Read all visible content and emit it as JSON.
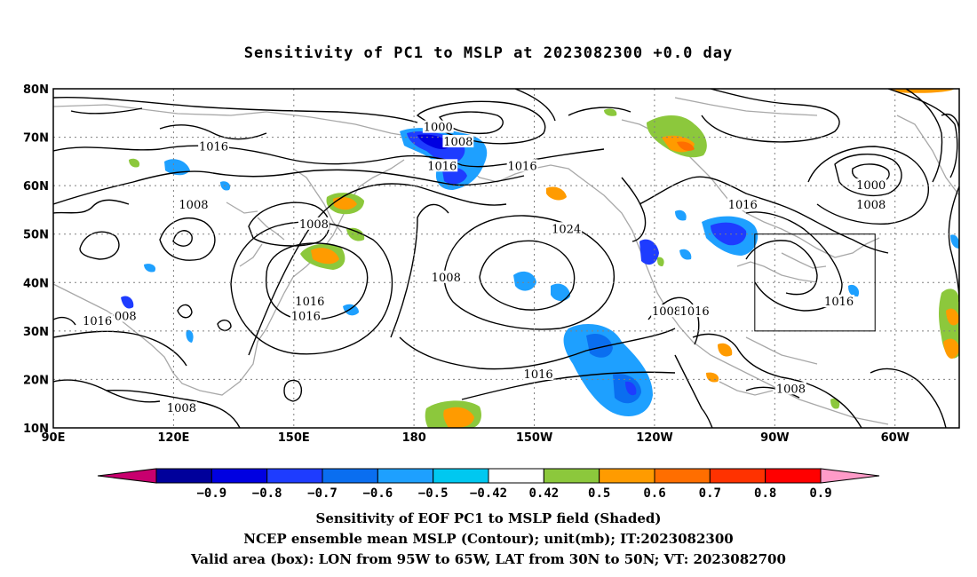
{
  "title": "Sensitivity of PC1 to MSLP at 2023082300 +0.0 day",
  "map": {
    "lat_labels": [
      "80N",
      "70N",
      "60N",
      "50N",
      "40N",
      "30N",
      "20N",
      "10N"
    ],
    "lon_labels": [
      "90E",
      "120E",
      "150E",
      "180",
      "150W",
      "120W",
      "90W",
      "60W"
    ],
    "validation_box": {
      "lon": [
        -95,
        -65
      ],
      "lat": [
        30,
        50
      ]
    },
    "contour_labels": [
      {
        "text": "1000",
        "lon": -174,
        "lat": 72
      },
      {
        "text": "1008",
        "lon": -169,
        "lat": 69
      },
      {
        "text": "1016",
        "lon": 130,
        "lat": 68
      },
      {
        "text": "1016",
        "lon": -173,
        "lat": 64
      },
      {
        "text": "1016",
        "lon": -153,
        "lat": 64
      },
      {
        "text": "1008",
        "lon": 125,
        "lat": 56
      },
      {
        "text": "1008",
        "lon": 155,
        "lat": 52
      },
      {
        "text": "1024",
        "lon": -142,
        "lat": 51
      },
      {
        "text": "1008",
        "lon": -172,
        "lat": 41
      },
      {
        "text": "1016",
        "lon": 154,
        "lat": 36
      },
      {
        "text": "1016",
        "lon": 153,
        "lat": 33
      },
      {
        "text": "1016",
        "lon": 101,
        "lat": 32
      },
      {
        "text": "008",
        "lon": 108,
        "lat": 33
      },
      {
        "text": "1008",
        "lon": -117,
        "lat": 34
      },
      {
        "text": "1016",
        "lon": -110,
        "lat": 34
      },
      {
        "text": "1016",
        "lon": -149,
        "lat": 21
      },
      {
        "text": "1016",
        "lon": -74,
        "lat": 36
      },
      {
        "text": "1016",
        "lon": -98,
        "lat": 56
      },
      {
        "text": "1000",
        "lon": -66,
        "lat": 60
      },
      {
        "text": "1008",
        "lon": -66,
        "lat": 56
      },
      {
        "text": "1008",
        "lon": -86,
        "lat": 18
      },
      {
        "text": "1008",
        "lon": 122,
        "lat": 14
      }
    ]
  },
  "colorbar": {
    "tick_labels": [
      "-0.9",
      "-0.8",
      "-0.7",
      "-0.6",
      "-0.5",
      "-0.42",
      "0.42",
      "0.5",
      "0.6",
      "0.7",
      "0.8",
      "0.9"
    ],
    "colors": [
      "#c8006e",
      "#00009b",
      "#0000e1",
      "#1e3cff",
      "#0a6ef0",
      "#1ea0ff",
      "#00c8f0",
      "#ffffff",
      "#8cc83c",
      "#ff9b00",
      "#ff6e00",
      "#ff3200",
      "#ff0000",
      "#ff9bc8"
    ]
  },
  "captions": {
    "line1": "Sensitivity of EOF PC1 to MSLP field (Shaded)",
    "line2": "NCEP ensemble mean MSLP (Contour); unit(mb); IT:2023082300",
    "line3": "Valid area (box): LON from 95W to 65W, LAT from 30N to 50N; VT: 2023082700"
  }
}
